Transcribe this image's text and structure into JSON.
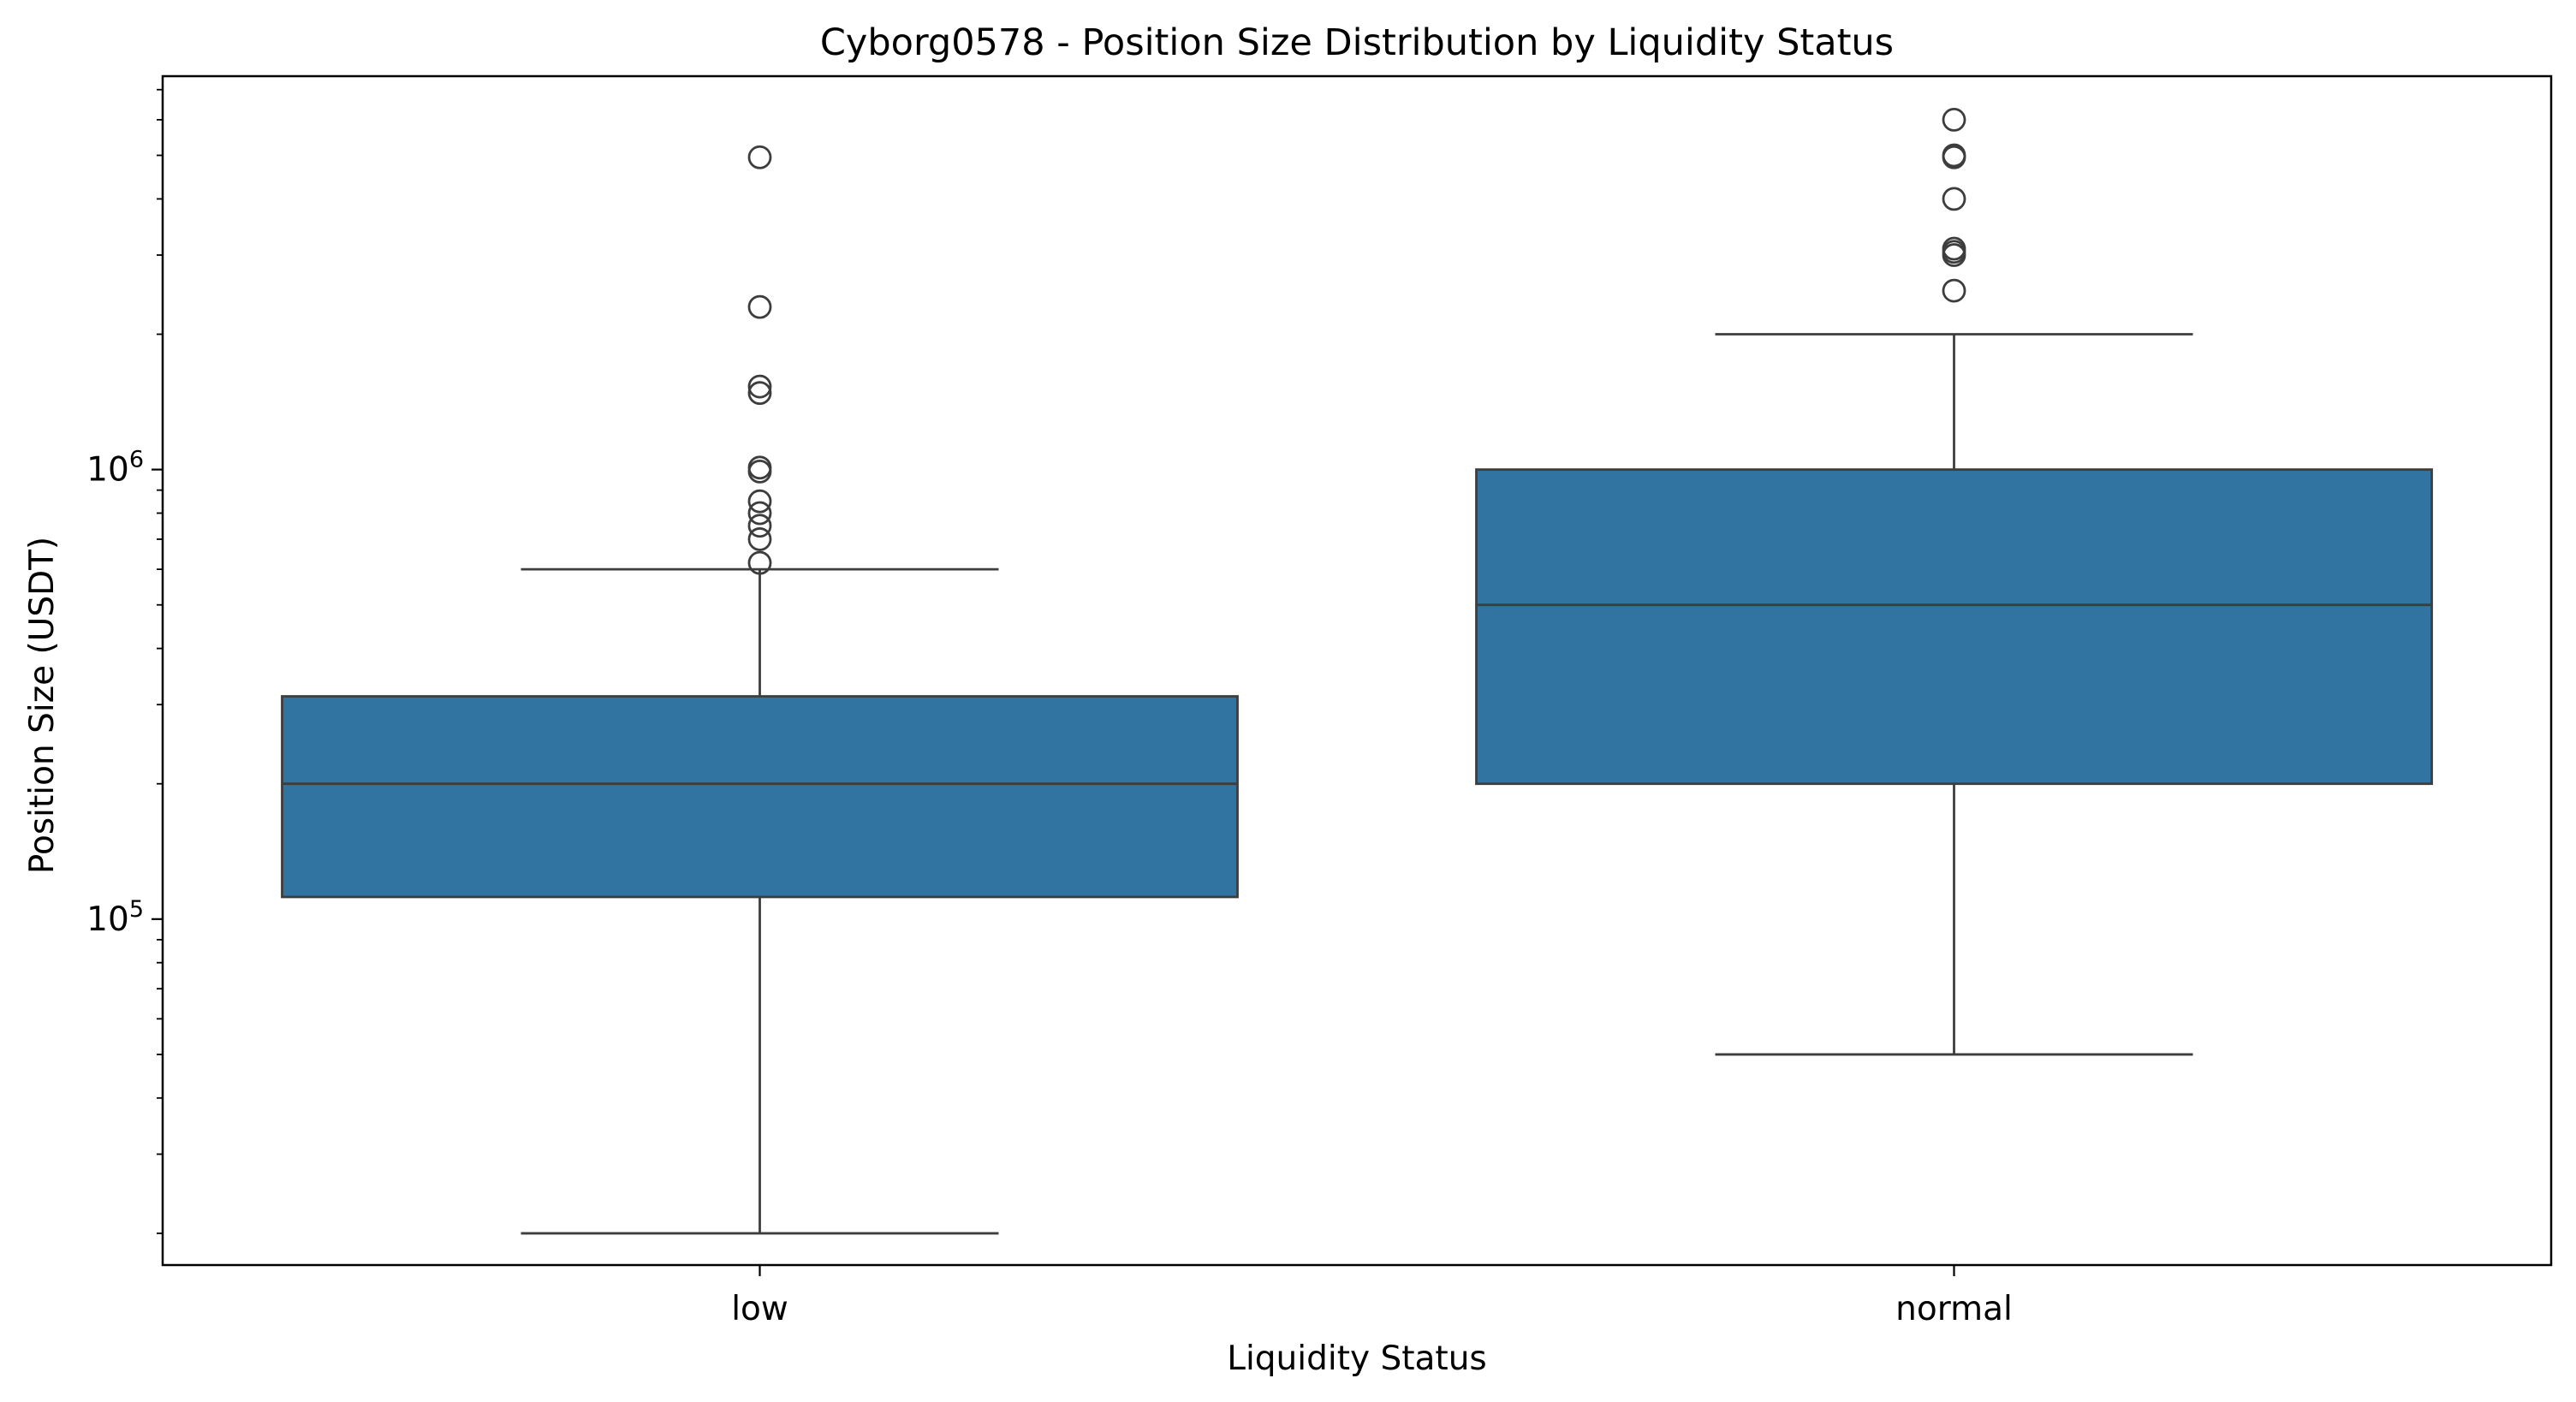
{
  "chart_data": {
    "type": "box",
    "title": "Cyborg0578 - Position Size Distribution by Liquidity Status",
    "xlabel": "Liquidity Status",
    "ylabel": "Position Size (USDT)",
    "yscale": "log",
    "ylim": [
      17000,
      7500000
    ],
    "y_tick_labels": [
      {
        "base": "10",
        "exp": "5",
        "value": 100000
      },
      {
        "base": "10",
        "exp": "6",
        "value": 1000000
      }
    ],
    "grid": false,
    "box_color": "#3274a1",
    "line_color": "#3d3d3d",
    "categories": [
      "low",
      "normal"
    ],
    "boxes": [
      {
        "category": "low",
        "whisker_low": 20000,
        "q1": 112000,
        "median": 200000,
        "q3": 313000,
        "whisker_high": 600000,
        "outliers": [
          4950000,
          2300000,
          1530000,
          1480000,
          1010000,
          990000,
          850000,
          800000,
          750000,
          700000,
          620000
        ]
      },
      {
        "category": "normal",
        "whisker_low": 50000,
        "q1": 200000,
        "median": 500000,
        "q3": 1000000,
        "whisker_high": 2000000,
        "outliers": [
          6000000,
          5000000,
          4950000,
          4000000,
          3100000,
          3050000,
          3000000,
          2500000
        ]
      }
    ]
  }
}
